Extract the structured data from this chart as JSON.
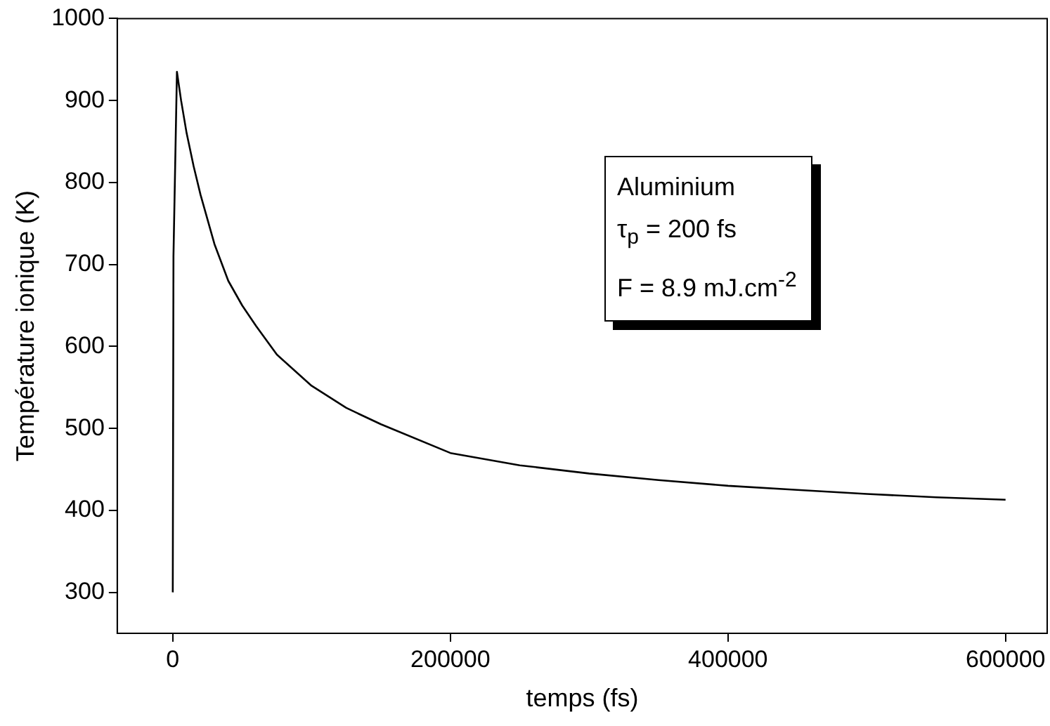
{
  "chart_data": {
    "type": "line",
    "xlabel": "temps (fs)",
    "ylabel": "Température ionique (K)",
    "annotations": [
      "Aluminium",
      "τ$_{p}$ = 200 fs",
      "F = 8.9 mJ.cm$^{-2}$"
    ],
    "xlim": [
      -40000,
      630000
    ],
    "xticks": [
      0,
      200000,
      400000,
      600000
    ],
    "ylim": [
      250,
      1000
    ],
    "yticks": [
      300,
      400,
      500,
      600,
      700,
      800,
      900,
      1000
    ],
    "grid": false,
    "legend": false,
    "marker": "none",
    "line_style": "solid",
    "series": [
      {
        "color": "#000000",
        "x": [
          0,
          500,
          3000,
          6000,
          10000,
          15000,
          20000,
          30000,
          40000,
          50000,
          60000,
          75000,
          100000,
          125000,
          150000,
          200000,
          250000,
          300000,
          350000,
          400000,
          450000,
          500000,
          550000,
          600000
        ],
        "values": [
          300,
          710,
          935,
          900,
          860,
          820,
          785,
          725,
          680,
          650,
          625,
          590,
          552,
          525,
          505,
          470,
          455,
          445,
          437,
          430,
          425,
          420,
          416,
          413
        ]
      }
    ]
  }
}
